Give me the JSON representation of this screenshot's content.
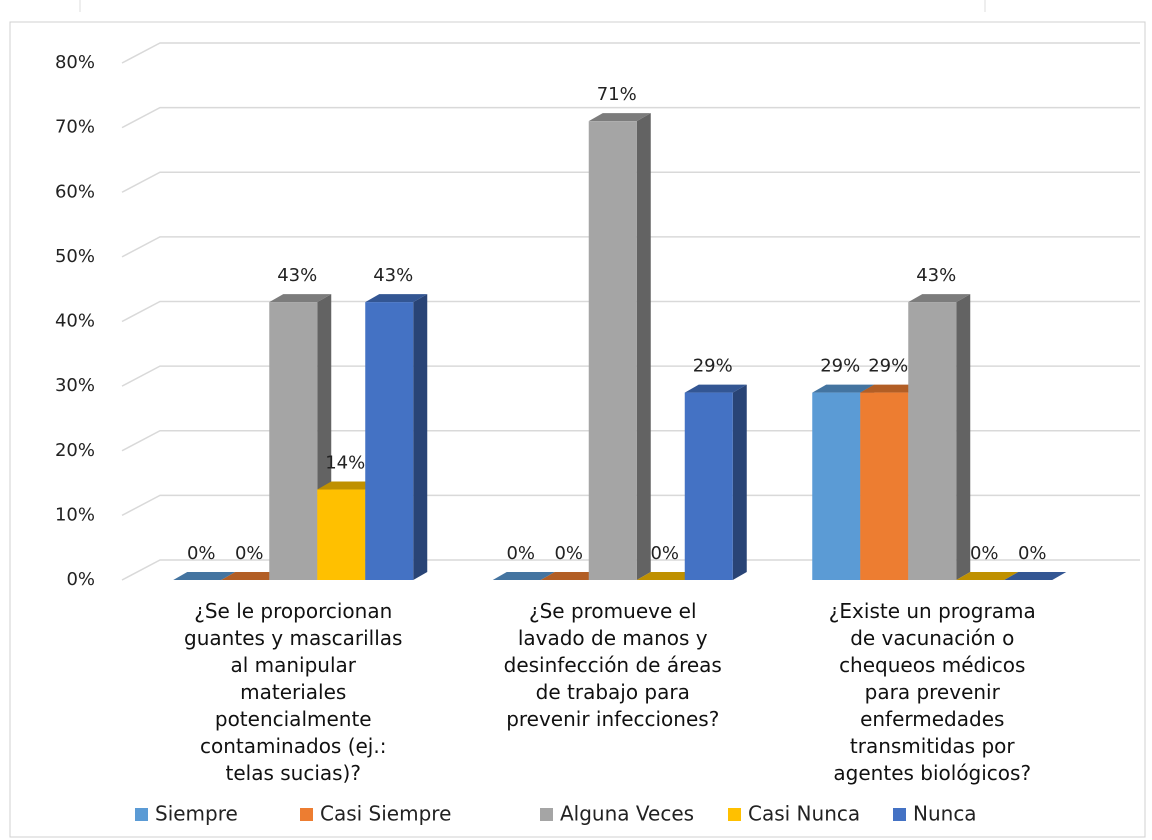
{
  "chart_data": {
    "type": "bar3d",
    "categories": [
      "¿Se le proporcionan\nguantes y mascarillas\nal manipular\nmateriales\npotencialmente\ncontaminados (ej.:\ntelas sucias)?",
      "¿Se promueve el\nlavado de manos y\ndesinfección de áreas\nde trabajo para\nprevenir infecciones?",
      "¿Existe un programa\nde vacunación o\nchequeos médicos\npara prevenir\nenfermedades\ntransmitidas por\nagentes biológicos?"
    ],
    "series": [
      {
        "name": "Siempre",
        "color": "#5b9bd5",
        "values": [
          0,
          0,
          29
        ],
        "value_labels": [
          "0%",
          "0%",
          "29%"
        ]
      },
      {
        "name": "Casi Siempre",
        "color": "#ed7d31",
        "values": [
          0,
          0,
          29
        ],
        "value_labels": [
          "0%",
          "0%",
          "29%"
        ]
      },
      {
        "name": "Alguna Veces",
        "color": "#a5a5a5",
        "values": [
          43,
          71,
          43
        ],
        "value_labels": [
          "43%",
          "71%",
          "43%"
        ]
      },
      {
        "name": "Casi Nunca",
        "color": "#ffc000",
        "values": [
          14,
          0,
          0
        ],
        "value_labels": [
          "14%",
          "0%",
          "0%"
        ]
      },
      {
        "name": "Nunca",
        "color": "#4472c4",
        "values": [
          43,
          29,
          0
        ],
        "value_labels": [
          "43%",
          "29%",
          "0%"
        ]
      }
    ],
    "ylim": [
      0,
      80
    ],
    "yticks": [
      {
        "value": 0,
        "label": "0%"
      },
      {
        "value": 10,
        "label": "10%"
      },
      {
        "value": 20,
        "label": "20%"
      },
      {
        "value": 30,
        "label": "30%"
      },
      {
        "value": 40,
        "label": "40%"
      },
      {
        "value": 50,
        "label": "50%"
      },
      {
        "value": 60,
        "label": "60%"
      },
      {
        "value": 70,
        "label": "70%"
      },
      {
        "value": 80,
        "label": "80%"
      }
    ],
    "grid": true,
    "legend": "bottom"
  }
}
